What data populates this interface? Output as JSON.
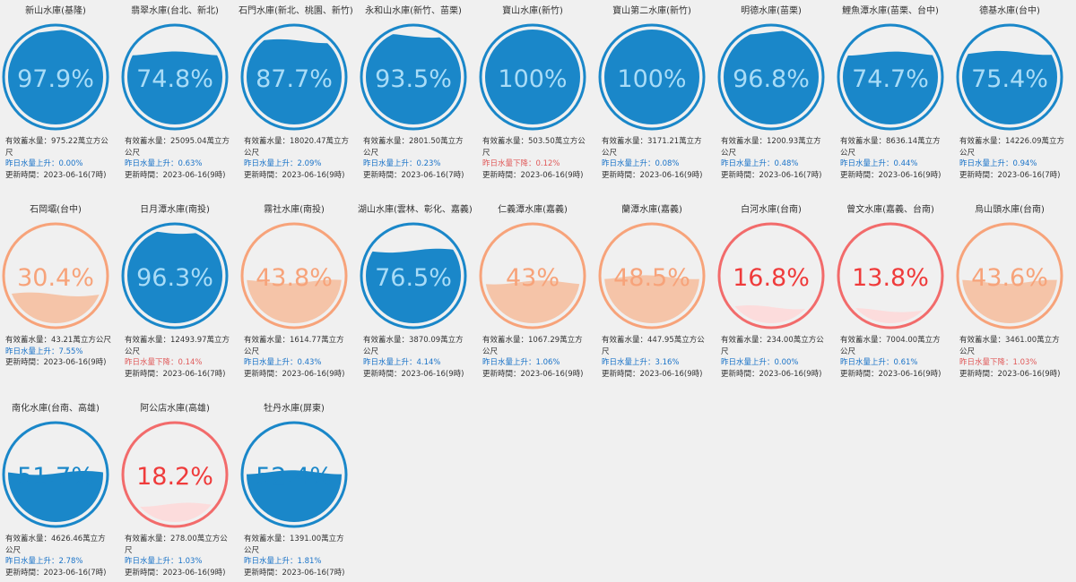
{
  "reservoirs": [
    {
      "name": "新山水庫(基隆)",
      "percent": 97.9,
      "pct_label": "97.9%",
      "level": "blue",
      "storage": "有效蓄水量：975.22萬立方公尺",
      "change": "昨日水量上升：0.00%",
      "change_dir": "up",
      "updated": "更新時間：2023-06-16(7時)"
    },
    {
      "name": "翡翠水庫(台北、新北)",
      "percent": 74.8,
      "pct_label": "74.8%",
      "level": "blue",
      "storage": "有效蓄水量：25095.04萬立方公尺",
      "change": "昨日水量上升：0.63%",
      "change_dir": "up",
      "updated": "更新時間：2023-06-16(9時)"
    },
    {
      "name": "石門水庫(新北、桃園、新竹)",
      "percent": 87.7,
      "pct_label": "87.7%",
      "level": "blue",
      "storage": "有效蓄水量：18020.47萬立方公尺",
      "change": "昨日水量上升：2.09%",
      "change_dir": "up",
      "updated": "更新時間：2023-06-16(9時)"
    },
    {
      "name": "永和山水庫(新竹、苗栗)",
      "percent": 93.5,
      "pct_label": "93.5%",
      "level": "blue",
      "storage": "有效蓄水量：2801.50萬立方公尺",
      "change": "昨日水量上升：0.23%",
      "change_dir": "up",
      "updated": "更新時間：2023-06-16(7時)"
    },
    {
      "name": "寶山水庫(新竹)",
      "percent": 100,
      "pct_label": "100%",
      "level": "blue",
      "storage": "有效蓄水量：503.50萬立方公尺",
      "change": "昨日水量下降：0.12%",
      "change_dir": "down",
      "updated": "更新時間：2023-06-16(9時)"
    },
    {
      "name": "寶山第二水庫(新竹)",
      "percent": 100,
      "pct_label": "100%",
      "level": "blue",
      "storage": "有效蓄水量：3171.21萬立方公尺",
      "change": "昨日水量上升：0.08%",
      "change_dir": "up",
      "updated": "更新時間：2023-06-16(9時)"
    },
    {
      "name": "明德水庫(苗栗)",
      "percent": 96.8,
      "pct_label": "96.8%",
      "level": "blue",
      "storage": "有效蓄水量：1200.93萬立方公尺",
      "change": "昨日水量上升：0.48%",
      "change_dir": "up",
      "updated": "更新時間：2023-06-16(7時)"
    },
    {
      "name": "鯉魚潭水庫(苗栗、台中)",
      "percent": 74.7,
      "pct_label": "74.7%",
      "level": "blue",
      "storage": "有效蓄水量：8636.14萬立方公尺",
      "change": "昨日水量上升：0.44%",
      "change_dir": "up",
      "updated": "更新時間：2023-06-16(9時)"
    },
    {
      "name": "德基水庫(台中)",
      "percent": 75.4,
      "pct_label": "75.4%",
      "level": "blue",
      "storage": "有效蓄水量：14226.09萬立方公尺",
      "change": "昨日水量上升：0.94%",
      "change_dir": "up",
      "updated": "更新時間：2023-06-16(7時)"
    },
    {
      "name": "石岡壩(台中)",
      "percent": 30.4,
      "pct_label": "30.4%",
      "level": "orange",
      "storage": "有效蓄水量：43.21萬立方公尺",
      "change": "昨日水量上升：7.55%",
      "change_dir": "up",
      "updated": "更新時間：2023-06-16(9時)"
    },
    {
      "name": "日月潭水庫(南投)",
      "percent": 96.3,
      "pct_label": "96.3%",
      "level": "blue",
      "storage": "有效蓄水量：12493.97萬立方公尺",
      "change": "昨日水量下降：0.14%",
      "change_dir": "down",
      "updated": "更新時間：2023-06-16(7時)"
    },
    {
      "name": "霧社水庫(南投)",
      "percent": 43.8,
      "pct_label": "43.8%",
      "level": "orange",
      "storage": "有效蓄水量：1614.77萬立方公尺",
      "change": "昨日水量上升：0.43%",
      "change_dir": "up",
      "updated": "更新時間：2023-06-16(9時)"
    },
    {
      "name": "湖山水庫(雲林、彰化、嘉義)",
      "percent": 76.5,
      "pct_label": "76.5%",
      "level": "blue",
      "storage": "有效蓄水量：3870.09萬立方公尺",
      "change": "昨日水量上升：4.14%",
      "change_dir": "up",
      "updated": "更新時間：2023-06-16(9時)"
    },
    {
      "name": "仁義潭水庫(嘉義)",
      "percent": 43,
      "pct_label": "43%",
      "level": "orange",
      "storage": "有效蓄水量：1067.29萬立方公尺",
      "change": "昨日水量上升：1.06%",
      "change_dir": "up",
      "updated": "更新時間：2023-06-16(9時)"
    },
    {
      "name": "蘭潭水庫(嘉義)",
      "percent": 48.5,
      "pct_label": "48.5%",
      "level": "orange",
      "storage": "有效蓄水量：447.95萬立方公尺",
      "change": "昨日水量上升：3.16%",
      "change_dir": "up",
      "updated": "更新時間：2023-06-16(9時)"
    },
    {
      "name": "白河水庫(台南)",
      "percent": 16.8,
      "pct_label": "16.8%",
      "level": "red",
      "storage": "有效蓄水量：234.00萬立方公尺",
      "change": "昨日水量上升：0.00%",
      "change_dir": "up",
      "updated": "更新時間：2023-06-16(9時)"
    },
    {
      "name": "曾文水庫(嘉義、台南)",
      "percent": 13.8,
      "pct_label": "13.8%",
      "level": "red",
      "storage": "有效蓄水量：7004.00萬立方公尺",
      "change": "昨日水量上升：0.61%",
      "change_dir": "up",
      "updated": "更新時間：2023-06-16(9時)"
    },
    {
      "name": "烏山頭水庫(台南)",
      "percent": 43.6,
      "pct_label": "43.6%",
      "level": "orange",
      "storage": "有效蓄水量：3461.00萬立方公尺",
      "change": "昨日水量下降：1.03%",
      "change_dir": "down",
      "updated": "更新時間：2023-06-16(9時)"
    },
    {
      "name": "南化水庫(台南、高雄)",
      "percent": 51.7,
      "pct_label": "51.7%",
      "level": "blue",
      "storage": "有效蓄水量：4626.46萬立方公尺",
      "change": "昨日水量上升：2.78%",
      "change_dir": "up",
      "updated": "更新時間：2023-06-16(7時)"
    },
    {
      "name": "阿公店水庫(高雄)",
      "percent": 18.2,
      "pct_label": "18.2%",
      "level": "red",
      "storage": "有效蓄水量：278.00萬立方公尺",
      "change": "昨日水量上升：1.03%",
      "change_dir": "up",
      "updated": "更新時間：2023-06-16(9時)"
    },
    {
      "name": "牡丹水庫(屏東)",
      "percent": 52.4,
      "pct_label": "52.4%",
      "level": "blue",
      "storage": "有效蓄水量：1391.00萬立方公尺",
      "change": "昨日水量上升：1.81%",
      "change_dir": "up",
      "updated": "更新時間：2023-06-16(7時)"
    }
  ],
  "colors": {
    "blue": {
      "ring": "#1a87c9",
      "fill": "#1a87c9",
      "text_over": "#a9dcf7",
      "text_out": "#1a87c9"
    },
    "orange": {
      "ring": "#f7a37a",
      "fill": "#f5c4a8",
      "text_over": "#f7a37a",
      "text_out": "#f7a37a"
    },
    "red": {
      "ring": "#f26b6b",
      "fill": "#fcdcdc",
      "text_over": "#ef3b3b",
      "text_out": "#ef3b3b"
    },
    "up_text": "#1a73c8",
    "down_text": "#e05a5a"
  }
}
